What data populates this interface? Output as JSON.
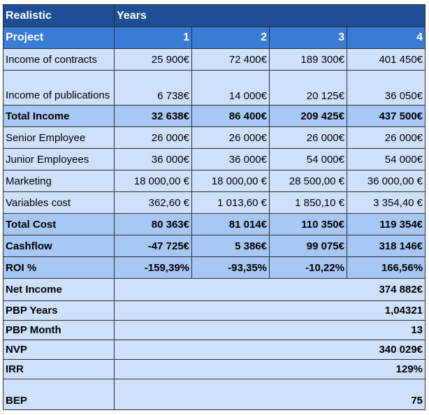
{
  "header": {
    "scenario": "Realistic",
    "years": "Years"
  },
  "project_row": {
    "label": "Project",
    "values": [
      "1",
      "2",
      "3",
      "4"
    ]
  },
  "rows": [
    {
      "label": "Income of contracts",
      "values": [
        "25 900€",
        "72 400€",
        "189 300€",
        "401 450€"
      ]
    },
    {
      "label": "Income of publications",
      "values": [
        "6 738€",
        "14 000€",
        "20 125€",
        "36 050€"
      ]
    },
    {
      "label": "Total Income",
      "values": [
        "32 638€",
        "86 400€",
        "209 425€",
        "437 500€"
      ]
    },
    {
      "label": "Senior Employee",
      "values": [
        "26 000€",
        "26 000€",
        "26 000€",
        "26 000€"
      ]
    },
    {
      "label": "Junior Employees",
      "values": [
        "36 000€",
        "36 000€",
        "54 000€",
        "54 000€"
      ]
    },
    {
      "label": "Marketing",
      "values": [
        "18 000,00 €",
        "18 000,00 €",
        "28 500,00 €",
        "36 000,00 €"
      ]
    },
    {
      "label": "Variables cost",
      "values": [
        "362,60 €",
        "1 013,60 €",
        "1 850,10 €",
        "3 354,40 €"
      ]
    },
    {
      "label": "Total Cost",
      "values": [
        "80 363€",
        "81 014€",
        "110 350€",
        "119 354€"
      ]
    },
    {
      "label": "Cashflow",
      "values": [
        "-47 725€",
        "5 386€",
        "99 075€",
        "318 146€"
      ]
    },
    {
      "label": "ROI %",
      "values": [
        "-159,39%",
        "-93,35%",
        "-10,22%",
        "166,56%"
      ]
    }
  ],
  "summary": [
    {
      "label": "Net Income",
      "value": "374 882€"
    },
    {
      "label": "PBP Years",
      "value": "1,04321"
    },
    {
      "label": "PBP Month",
      "value": "13"
    },
    {
      "label": "NVP",
      "value": "340 029€"
    },
    {
      "label": "IRR",
      "value": "129%"
    },
    {
      "label": "BEP",
      "value": "75"
    }
  ]
}
